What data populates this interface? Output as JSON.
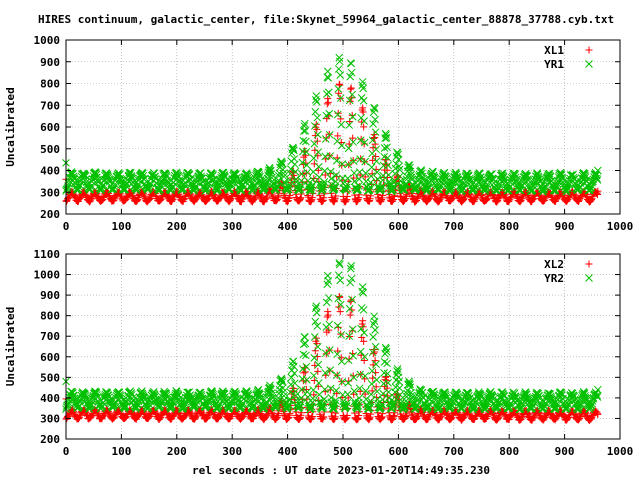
{
  "title": "HIRES continuum, galactic_center, file:Skynet_59964_galactic_center_88878_37788.cyb.txt",
  "xlabel": "rel seconds : UT date 2023-01-20T14:49:35.230",
  "colors": {
    "red": "#ff0000",
    "green": "#00c000",
    "frame": "#000000",
    "grid": "#a0a0a0"
  },
  "chart_data": [
    {
      "type": "scatter",
      "ylabel": "Uncalibrated",
      "xlim": [
        0,
        1000
      ],
      "ylim": [
        200,
        1000
      ],
      "xticks": [
        0,
        100,
        200,
        300,
        400,
        500,
        600,
        700,
        800,
        900,
        1000
      ],
      "yticks": [
        200,
        300,
        400,
        500,
        600,
        700,
        800,
        900,
        1000
      ],
      "grid": true,
      "legend_position": "top-right",
      "sweep_period_s": 21,
      "x_range": [
        0,
        960
      ],
      "series": [
        {
          "name": "XL1",
          "marker": "+",
          "color": "#ff0000",
          "baseline_min": 255,
          "baseline_max": 305,
          "drift_end": 255,
          "peak_center": 500,
          "peak_width": 70,
          "peak_max": 810,
          "first_point": 360,
          "last_point": 305
        },
        {
          "name": "YR1",
          "marker": "x",
          "color": "#00c000",
          "baseline_min": 305,
          "baseline_max": 395,
          "drift_end": 300,
          "peak_center": 500,
          "peak_width": 75,
          "peak_max": 930,
          "first_point": 435,
          "last_point": 400
        }
      ]
    },
    {
      "type": "scatter",
      "ylabel": "Uncalibrated",
      "xlim": [
        0,
        1000
      ],
      "ylim": [
        200,
        1100
      ],
      "xticks": [
        0,
        100,
        200,
        300,
        400,
        500,
        600,
        700,
        800,
        900,
        1000
      ],
      "yticks": [
        200,
        300,
        400,
        500,
        600,
        700,
        800,
        900,
        1000,
        1100
      ],
      "grid": true,
      "legend_position": "top-right",
      "sweep_period_s": 21,
      "x_range": [
        0,
        960
      ],
      "series": [
        {
          "name": "XL2",
          "marker": "+",
          "color": "#ff0000",
          "baseline_min": 295,
          "baseline_max": 345,
          "drift_end": 290,
          "peak_center": 500,
          "peak_width": 70,
          "peak_max": 910,
          "first_point": 395,
          "last_point": 320
        },
        {
          "name": "YR2",
          "marker": "x",
          "color": "#00c000",
          "baseline_min": 345,
          "baseline_max": 435,
          "drift_end": 340,
          "peak_center": 500,
          "peak_width": 75,
          "peak_max": 1080,
          "first_point": 480,
          "last_point": 440
        }
      ]
    }
  ]
}
